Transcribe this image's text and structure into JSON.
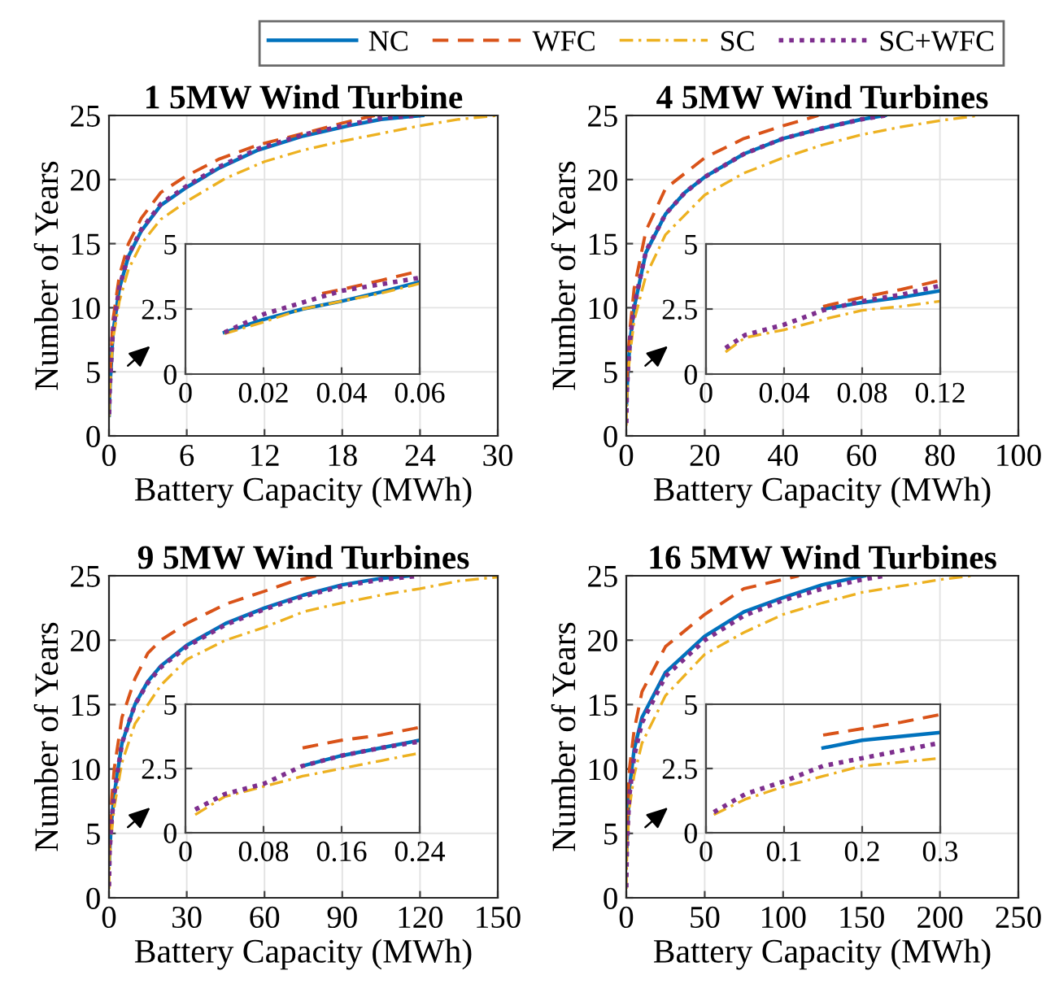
{
  "chart_data": [
    {
      "type": "line",
      "title": "1 5MW Wind Turbine",
      "xlabel": "Battery Capacity (MWh)",
      "ylabel": "Number of Years",
      "xlim": [
        0,
        30
      ],
      "ylim": [
        0,
        25
      ],
      "xticks": [
        0,
        6,
        12,
        18,
        24,
        30
      ],
      "yticks": [
        0,
        5,
        10,
        15,
        20,
        25
      ],
      "grid": true,
      "legend": "top right",
      "series": [
        {
          "name": "NC",
          "color": "#0072bd",
          "line_style": "solid",
          "x": [
            0.01,
            0.06,
            0.3,
            0.8,
            1.5,
            2.5,
            4,
            6,
            8.5,
            11.5,
            15,
            18.5,
            21,
            24.2
          ],
          "values": [
            1.6,
            3.5,
            8,
            11.5,
            14,
            16,
            18,
            19.4,
            20.9,
            22.3,
            23.4,
            24.2,
            24.7,
            25
          ]
        },
        {
          "name": "WFC",
          "color": "#d95319",
          "line_style": "dashed",
          "x": [
            0.035,
            0.06,
            0.3,
            0.8,
            1.5,
            2.5,
            4,
            6,
            8.5,
            11.5,
            15,
            18,
            20.5
          ],
          "values": [
            3.1,
            4.0,
            9,
            12.5,
            15,
            17,
            19,
            20.3,
            21.6,
            22.7,
            23.6,
            24.4,
            25
          ]
        },
        {
          "name": "SC",
          "color": "#edb120",
          "line_style": "dashdot",
          "x": [
            0.01,
            0.06,
            0.3,
            0.8,
            1.5,
            2.5,
            4,
            6,
            9,
            12,
            15,
            18,
            21,
            24,
            27,
            30
          ],
          "values": [
            1.5,
            3.4,
            7.5,
            10.5,
            13,
            15,
            16.9,
            18.3,
            20.1,
            21.4,
            22.3,
            23,
            23.6,
            24.2,
            24.7,
            25
          ]
        },
        {
          "name": "SC+WFC",
          "color": "#7e2f8e",
          "line_style": "dotted",
          "x": [
            0.01,
            0.06,
            0.3,
            0.8,
            1.5,
            2.5,
            4,
            6,
            8.5,
            11.5,
            15,
            18.5,
            21,
            24
          ],
          "values": [
            1.7,
            3.7,
            8.2,
            11.6,
            14.1,
            16.1,
            18.1,
            19.5,
            21,
            22.4,
            23.5,
            24.3,
            24.8,
            25
          ]
        }
      ]
    },
    {
      "type": "line",
      "xlim": [
        0,
        0.06
      ],
      "ylim": [
        0,
        5
      ],
      "xticks": [
        0,
        0.02,
        0.04,
        0.06
      ],
      "yticks": [
        0,
        2.5,
        5
      ],
      "grid": true,
      "series": [
        {
          "color": "#0072bd",
          "line_style": "solid",
          "x": [
            0.01,
            0.02,
            0.03,
            0.04,
            0.05,
            0.06
          ],
          "values": [
            1.6,
            2.1,
            2.5,
            2.8,
            3.15,
            3.54
          ]
        },
        {
          "color": "#d95319",
          "line_style": "dashed",
          "x": [
            0.035,
            0.04,
            0.05,
            0.06
          ],
          "values": [
            3.1,
            3.25,
            3.6,
            3.96
          ]
        },
        {
          "color": "#edb120",
          "line_style": "dashdot",
          "x": [
            0.01,
            0.02,
            0.03,
            0.04,
            0.05,
            0.06
          ],
          "values": [
            1.55,
            2.0,
            2.5,
            2.8,
            3.1,
            3.48
          ]
        },
        {
          "color": "#7e2f8e",
          "line_style": "dotted",
          "x": [
            0.01,
            0.02,
            0.03,
            0.04,
            0.05,
            0.06
          ],
          "values": [
            1.6,
            2.3,
            2.75,
            3.2,
            3.45,
            3.7
          ]
        }
      ]
    },
    {
      "type": "line",
      "title": "4 5MW Wind Turbines",
      "xlabel": "Battery Capacity (MWh)",
      "ylabel": "Number of Years",
      "xlim": [
        0,
        100
      ],
      "ylim": [
        0,
        25
      ],
      "xticks": [
        0,
        20,
        40,
        60,
        80,
        100
      ],
      "yticks": [
        0,
        5,
        10,
        15,
        20,
        25
      ],
      "grid": true,
      "series": [
        {
          "color": "#0072bd",
          "line_style": "solid",
          "x": [
            0.06,
            0.12,
            0.5,
            1,
            2,
            5,
            10,
            15,
            20,
            30,
            40,
            50,
            60,
            66
          ],
          "values": [
            2.5,
            3.2,
            5.5,
            7.5,
            10,
            14.3,
            17.3,
            19,
            20.2,
            22,
            23.2,
            24,
            24.7,
            25
          ]
        },
        {
          "color": "#d95319",
          "line_style": "dashed",
          "x": [
            0.06,
            0.12,
            0.5,
            1,
            2,
            5,
            10,
            20,
            30,
            40,
            49
          ],
          "values": [
            2.6,
            3.6,
            6.5,
            8.5,
            11.5,
            16,
            19.3,
            21.7,
            23.2,
            24.2,
            25
          ]
        },
        {
          "color": "#edb120",
          "line_style": "dashdot",
          "x": [
            0.01,
            0.05,
            0.12,
            0.5,
            1,
            2,
            5,
            10,
            20,
            30,
            40,
            50,
            60,
            70,
            80,
            90
          ],
          "values": [
            0.8,
            1.8,
            2.8,
            5,
            6.5,
            9,
            12.5,
            15.7,
            18.8,
            20.5,
            21.7,
            22.7,
            23.5,
            24.1,
            24.6,
            25
          ]
        },
        {
          "color": "#7e2f8e",
          "line_style": "dotted",
          "x": [
            0.01,
            0.04,
            0.12,
            0.5,
            1,
            2,
            5,
            10,
            15,
            20,
            30,
            40,
            50,
            60,
            66
          ],
          "values": [
            1.0,
            1.9,
            3.4,
            5.6,
            7.6,
            10.1,
            14.4,
            17.3,
            19,
            20.2,
            22,
            23.2,
            24,
            24.7,
            25
          ]
        }
      ]
    },
    {
      "type": "line",
      "xlim": [
        0,
        0.12
      ],
      "ylim": [
        0,
        5
      ],
      "xticks": [
        0,
        0.04,
        0.08,
        0.12
      ],
      "yticks": [
        0,
        2.5,
        5
      ],
      "grid": true,
      "series": [
        {
          "color": "#0072bd",
          "line_style": "solid",
          "x": [
            0.06,
            0.08,
            0.1,
            0.12
          ],
          "values": [
            2.5,
            2.75,
            2.95,
            3.2
          ]
        },
        {
          "color": "#d95319",
          "line_style": "dashed",
          "x": [
            0.06,
            0.08,
            0.1,
            0.12
          ],
          "values": [
            2.6,
            2.95,
            3.25,
            3.6
          ]
        },
        {
          "color": "#edb120",
          "line_style": "dashdot",
          "x": [
            0.01,
            0.02,
            0.04,
            0.06,
            0.08,
            0.1,
            0.12
          ],
          "values": [
            0.85,
            1.4,
            1.7,
            2.1,
            2.45,
            2.6,
            2.8
          ]
        },
        {
          "color": "#7e2f8e",
          "line_style": "dotted",
          "x": [
            0.01,
            0.02,
            0.04,
            0.06,
            0.08,
            0.1,
            0.12
          ],
          "values": [
            1.0,
            1.5,
            1.9,
            2.45,
            2.8,
            3.05,
            3.4
          ]
        }
      ]
    },
    {
      "type": "line",
      "title": "9 5MW Wind Turbines",
      "xlabel": "Battery Capacity (MWh)",
      "ylabel": "Number of Years",
      "xlim": [
        0,
        150
      ],
      "ylim": [
        0,
        25
      ],
      "xticks": [
        0,
        30,
        60,
        90,
        120,
        150
      ],
      "yticks": [
        0,
        5,
        10,
        15,
        20,
        25
      ],
      "grid": true,
      "series": [
        {
          "color": "#0072bd",
          "line_style": "solid",
          "x": [
            0.12,
            0.24,
            1,
            2,
            5,
            10,
            15,
            20,
            30,
            45,
            60,
            75,
            90,
            105,
            116
          ],
          "values": [
            2.6,
            3.6,
            6,
            8,
            12,
            15,
            16.8,
            18,
            19.6,
            21.3,
            22.5,
            23.5,
            24.3,
            24.8,
            25
          ]
        },
        {
          "color": "#d95319",
          "line_style": "dashed",
          "x": [
            0.12,
            0.24,
            1,
            2,
            5,
            10,
            15,
            20,
            30,
            45,
            60,
            70,
            80
          ],
          "values": [
            3.3,
            4.1,
            7.5,
            10,
            14,
            17,
            19,
            20,
            21.3,
            22.8,
            23.8,
            24.5,
            25
          ]
        },
        {
          "color": "#edb120",
          "line_style": "dashdot",
          "x": [
            0.01,
            0.08,
            0.24,
            1,
            2,
            5,
            10,
            20,
            30,
            45,
            60,
            75,
            90,
            105,
            120,
            135,
            150
          ],
          "values": [
            0.7,
            1.8,
            3.1,
            5,
            7,
            10.5,
            13.5,
            16.5,
            18.5,
            20,
            21,
            22.2,
            22.9,
            23.5,
            24,
            24.6,
            24.9
          ]
        },
        {
          "color": "#7e2f8e",
          "line_style": "dotted",
          "x": [
            0.01,
            0.04,
            0.08,
            0.24,
            1,
            2,
            5,
            10,
            15,
            20,
            30,
            45,
            60,
            75,
            90,
            105,
            120
          ],
          "values": [
            0.9,
            1.5,
            1.9,
            3.6,
            6,
            8,
            12,
            15,
            16.7,
            17.9,
            19.5,
            21.2,
            22.4,
            23.4,
            24.2,
            24.7,
            25
          ]
        }
      ]
    },
    {
      "type": "line",
      "xlim": [
        0,
        0.24
      ],
      "ylim": [
        0,
        5
      ],
      "xticks": [
        0,
        0.08,
        0.16,
        0.24
      ],
      "yticks": [
        0,
        2.5,
        5
      ],
      "grid": true,
      "series": [
        {
          "color": "#0072bd",
          "line_style": "solid",
          "x": [
            0.12,
            0.16,
            0.2,
            0.24
          ],
          "values": [
            2.6,
            3.0,
            3.3,
            3.6
          ]
        },
        {
          "color": "#d95319",
          "line_style": "dashed",
          "x": [
            0.12,
            0.16,
            0.2,
            0.24
          ],
          "values": [
            3.3,
            3.6,
            3.8,
            4.1
          ]
        },
        {
          "color": "#edb120",
          "line_style": "dashdot",
          "x": [
            0.01,
            0.04,
            0.08,
            0.12,
            0.16,
            0.2,
            0.24
          ],
          "values": [
            0.7,
            1.4,
            1.8,
            2.2,
            2.5,
            2.8,
            3.1
          ]
        },
        {
          "color": "#7e2f8e",
          "line_style": "dotted",
          "x": [
            0.01,
            0.04,
            0.08,
            0.12,
            0.16,
            0.2,
            0.24
          ],
          "values": [
            0.9,
            1.5,
            1.9,
            2.6,
            3.0,
            3.3,
            3.55
          ]
        }
      ]
    },
    {
      "type": "line",
      "title": "16 5MW Wind Turbines",
      "xlabel": "Battery Capacity (MWh)",
      "ylabel": "Number of Years",
      "xlim": [
        0,
        250
      ],
      "ylim": [
        0,
        25
      ],
      "xticks": [
        0,
        50,
        100,
        150,
        200,
        250
      ],
      "yticks": [
        0,
        5,
        10,
        15,
        20,
        25
      ],
      "grid": true,
      "series": [
        {
          "color": "#0072bd",
          "line_style": "solid",
          "x": [
            0.15,
            0.3,
            1,
            2,
            5,
            10,
            25,
            50,
            75,
            100,
            125,
            152
          ],
          "values": [
            3.3,
            3.9,
            6,
            8.5,
            11.5,
            14,
            17.5,
            20.3,
            22.2,
            23.3,
            24.3,
            25
          ]
        },
        {
          "color": "#d95319",
          "line_style": "dashed",
          "x": [
            0.15,
            0.3,
            1,
            2,
            5,
            10,
            25,
            50,
            75,
            110
          ],
          "values": [
            3.8,
            4.6,
            7.5,
            10,
            13,
            16,
            19.5,
            22,
            24,
            25
          ]
        },
        {
          "color": "#edb120",
          "line_style": "dashdot",
          "x": [
            0.01,
            0.1,
            0.3,
            1,
            2,
            5,
            10,
            25,
            50,
            75,
            100,
            125,
            150,
            175,
            200,
            220
          ],
          "values": [
            0.7,
            1.8,
            2.9,
            5,
            7,
            9.5,
            12,
            15.7,
            18.9,
            20.6,
            22,
            22.9,
            23.7,
            24.2,
            24.7,
            25
          ]
        },
        {
          "color": "#7e2f8e",
          "line_style": "dotted",
          "x": [
            0.01,
            0.1,
            0.3,
            1,
            2,
            5,
            10,
            25,
            50,
            75,
            100,
            125,
            150,
            165
          ],
          "values": [
            0.8,
            2.0,
            3.5,
            5.8,
            8,
            11,
            13.6,
            17.2,
            20,
            21.9,
            23.1,
            24,
            24.7,
            25
          ]
        }
      ]
    },
    {
      "type": "line",
      "xlim": [
        0,
        0.3
      ],
      "ylim": [
        0,
        5
      ],
      "xticks": [
        0,
        0.1,
        0.2,
        0.3
      ],
      "yticks": [
        0,
        2.5,
        5
      ],
      "grid": true,
      "series": [
        {
          "color": "#0072bd",
          "line_style": "solid",
          "x": [
            0.15,
            0.2,
            0.25,
            0.3
          ],
          "values": [
            3.3,
            3.6,
            3.75,
            3.9
          ]
        },
        {
          "color": "#d95319",
          "line_style": "dashed",
          "x": [
            0.15,
            0.2,
            0.25,
            0.3
          ],
          "values": [
            3.8,
            4.05,
            4.3,
            4.6
          ]
        },
        {
          "color": "#edb120",
          "line_style": "dashdot",
          "x": [
            0.01,
            0.05,
            0.1,
            0.15,
            0.2,
            0.25,
            0.3
          ],
          "values": [
            0.7,
            1.3,
            1.8,
            2.2,
            2.6,
            2.75,
            2.9
          ]
        },
        {
          "color": "#7e2f8e",
          "line_style": "dotted",
          "x": [
            0.01,
            0.05,
            0.1,
            0.15,
            0.2,
            0.25,
            0.3
          ],
          "values": [
            0.8,
            1.5,
            2.0,
            2.6,
            2.9,
            3.2,
            3.5
          ]
        }
      ]
    }
  ]
}
